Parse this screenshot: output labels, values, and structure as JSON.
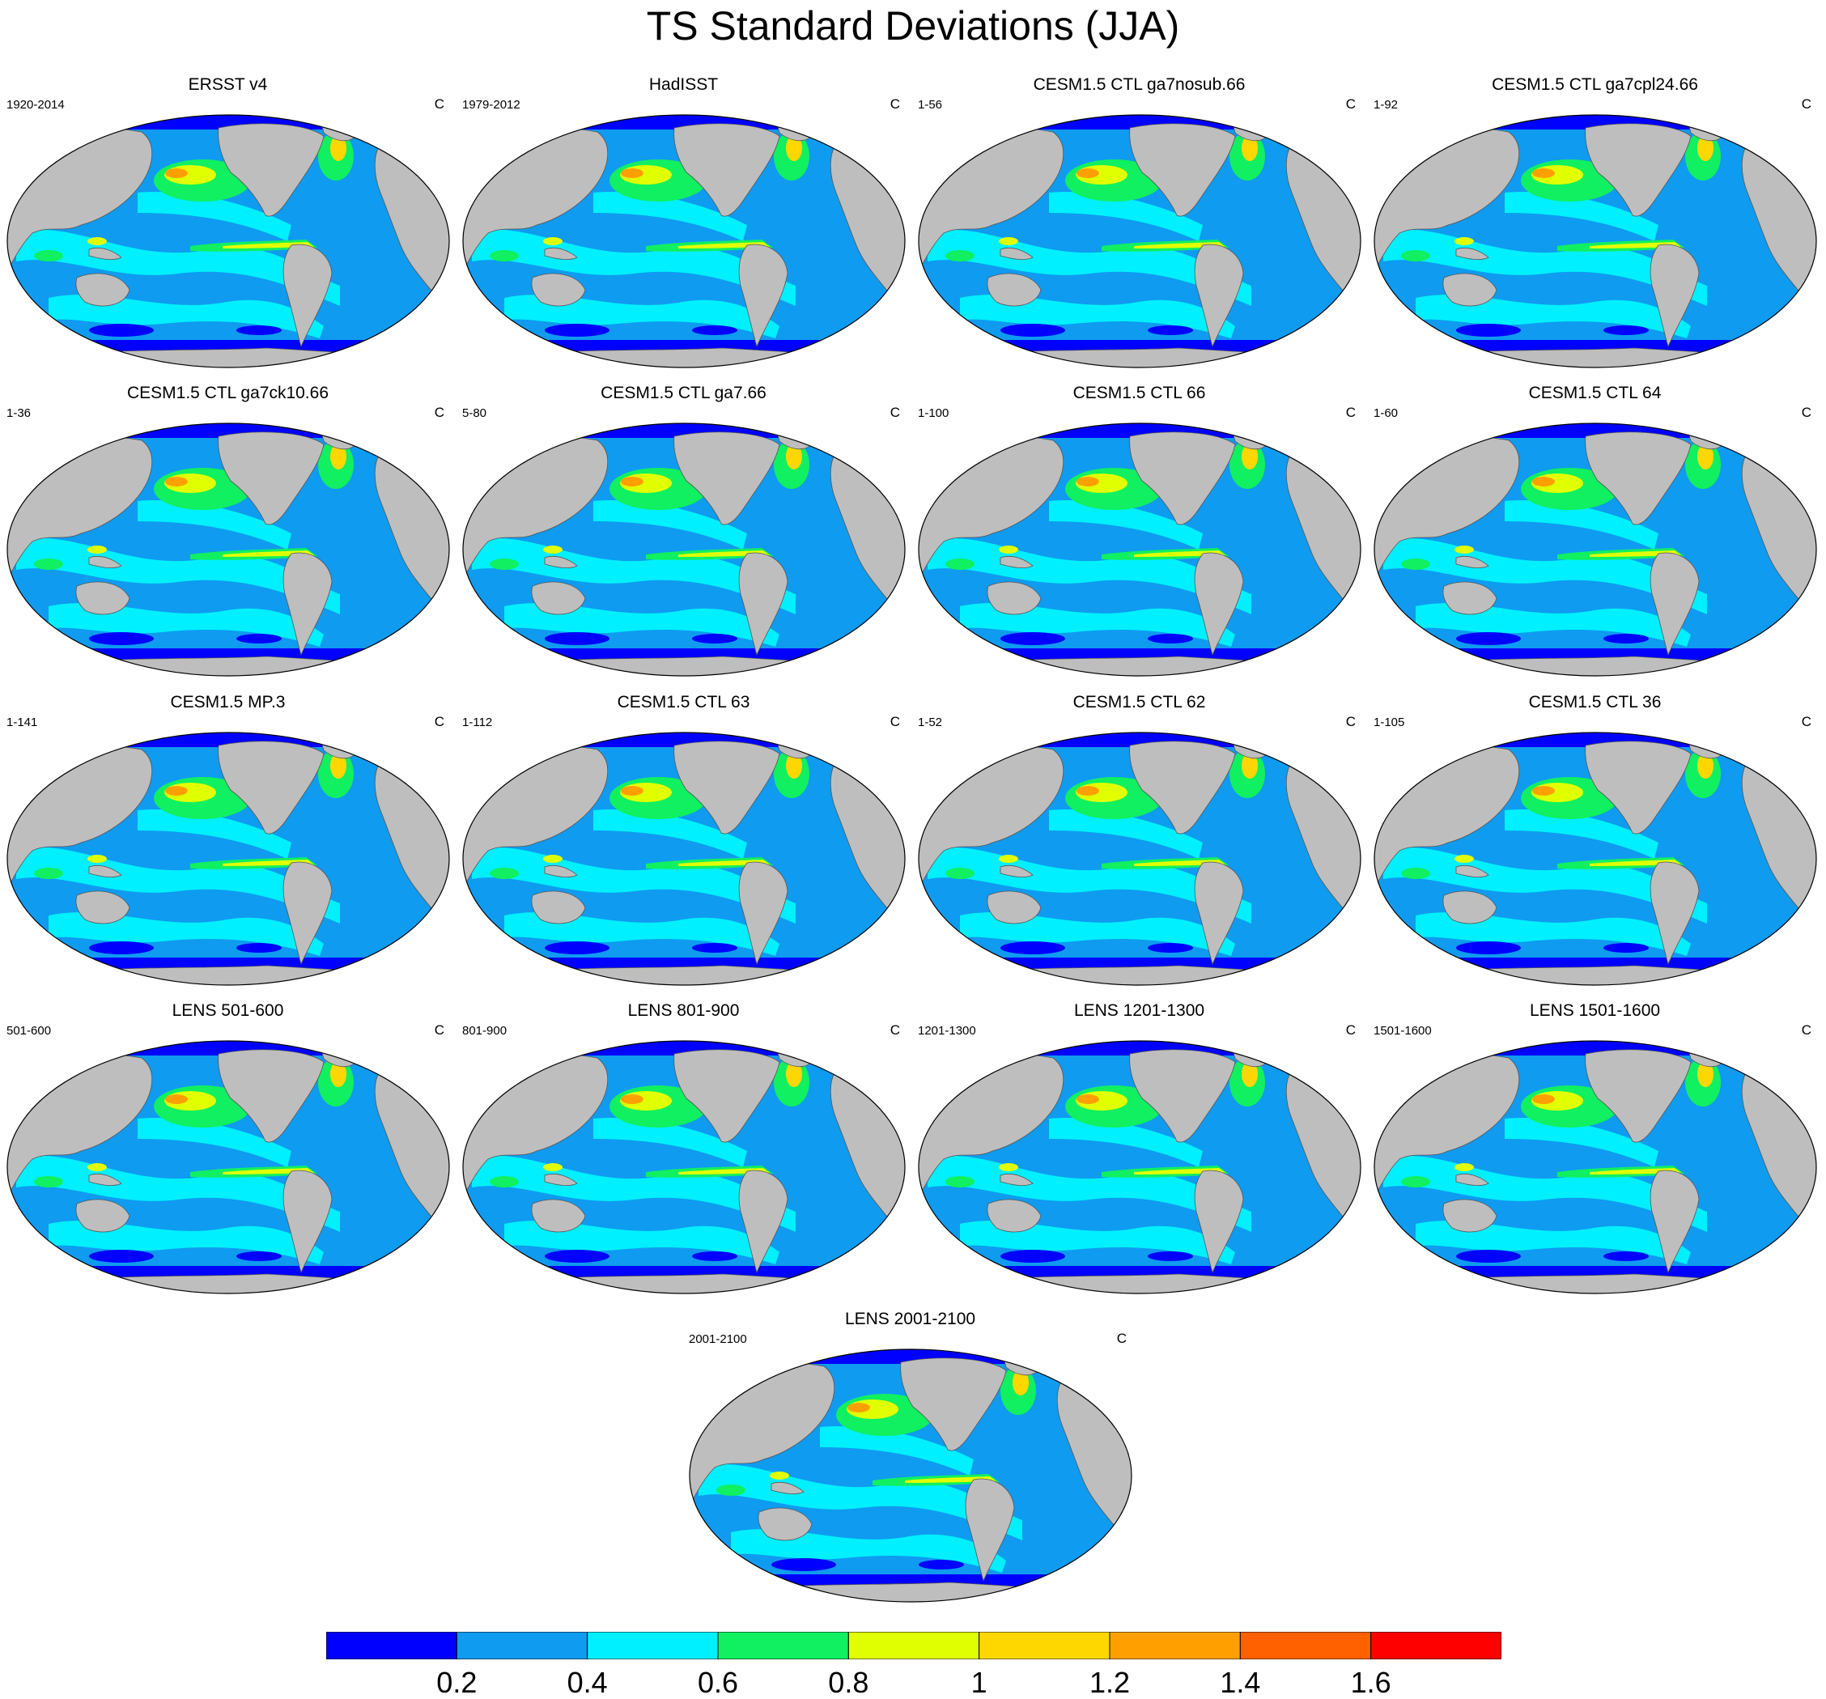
{
  "title": "TS Standard Deviations (JJA)",
  "units": "C",
  "colors": {
    "land": "#bebebe",
    "ocean_base": "#0f9bf0",
    "levels": [
      "#0000ff",
      "#0f9bf0",
      "#00f0ff",
      "#10f060",
      "#e0ff00",
      "#ffd700",
      "#ffa000",
      "#ff6000",
      "#ff0000"
    ]
  },
  "colorbar": {
    "labels": [
      "0.2",
      "0.4",
      "0.6",
      "0.8",
      "1",
      "1.2",
      "1.4",
      "1.6"
    ],
    "levels": [
      0.2,
      0.4,
      0.6,
      0.8,
      1.0,
      1.2,
      1.4,
      1.6
    ]
  },
  "panels": [
    {
      "title": "ERSST v4",
      "left": "1920-2014",
      "right": "C"
    },
    {
      "title": "HadISST",
      "left": "1979-2012",
      "right": "C"
    },
    {
      "title": "CESM1.5 CTL ga7nosub.66",
      "left": "1-56",
      "right": "C"
    },
    {
      "title": "CESM1.5 CTL ga7cpl24.66",
      "left": "1-92",
      "right": "C"
    },
    {
      "title": "CESM1.5 CTL ga7ck10.66",
      "left": "1-36",
      "right": "C"
    },
    {
      "title": "CESM1.5 CTL ga7.66",
      "left": "5-80",
      "right": "C"
    },
    {
      "title": "CESM1.5 CTL 66",
      "left": "1-100",
      "right": "C"
    },
    {
      "title": "CESM1.5 CTL 64",
      "left": "1-60",
      "right": "C"
    },
    {
      "title": "CESM1.5 MP.3",
      "left": "1-141",
      "right": "C"
    },
    {
      "title": "CESM1.5 CTL 63",
      "left": "1-112",
      "right": "C"
    },
    {
      "title": "CESM1.5 CTL 62",
      "left": "1-52",
      "right": "C"
    },
    {
      "title": "CESM1.5 CTL 36",
      "left": "1-105",
      "right": "C"
    },
    {
      "title": "LENS 501-600",
      "left": "501-600",
      "right": "C"
    },
    {
      "title": "LENS 801-900",
      "left": "801-900",
      "right": "C"
    },
    {
      "title": "LENS 1201-1300",
      "left": "1201-1300",
      "right": "C"
    },
    {
      "title": "LENS 1501-1600",
      "left": "1501-1600",
      "right": "C"
    },
    {
      "title": "LENS 2001-2100",
      "left": "2001-2100",
      "right": "C"
    }
  ]
}
